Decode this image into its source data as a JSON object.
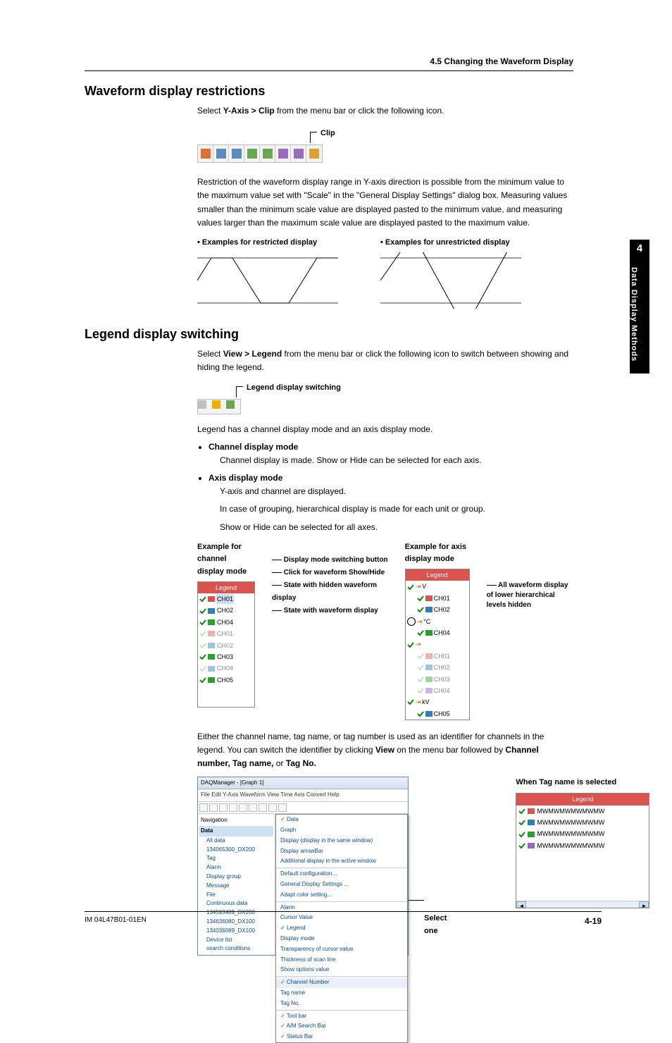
{
  "breadcrumb": "4.5  Changing the Waveform Display",
  "side_tab": {
    "num": "4",
    "text": "Data Display Methods"
  },
  "footer": {
    "doc": "IM 04L47B01-01EN",
    "page": "4-19"
  },
  "sec1": {
    "title": "Waveform display restrictions",
    "intro_a": "Select ",
    "intro_b": "Y-Axis > Clip",
    "intro_c": " from the menu bar or click the following icon.",
    "clip_label": "Clip",
    "para": "Restriction of the waveform display range in Y-axis direction is possible from the minimum value to the maximum value set with \"Scale\" in the \"General Display Settings\" dialog box. Measuring values smaller than the minimum scale value are displayed pasted to the minimum value, and measuring values larger than the maximum scale value are displayed pasted to the maximum value.",
    "ex_restricted": "•   Examples for restricted display",
    "ex_unrestricted": "•   Examples for unrestricted display",
    "toolbar_icons": [
      "#e07030",
      "#5a8cc0",
      "#5a8cc0",
      "#6aa84f",
      "#6aa84f",
      "#9a6bbf",
      "#9a6bbf",
      "#e0a030"
    ]
  },
  "sec2": {
    "title": "Legend display switching",
    "intro_a": "Select ",
    "intro_b": "View > Legend",
    "intro_c": " from the menu bar or click the following icon to switch between showing and hiding the legend.",
    "switch_label": "Legend display switching",
    "toolbar_icons": [
      "#c0c0c0",
      "#f0b000",
      "#6aa84f"
    ],
    "modes_line": "Legend has a channel display mode and an axis display mode.",
    "ch_mode_h": "Channel display mode",
    "ch_mode_t": "Channel display is made. Show or Hide can be selected for each axis.",
    "ax_mode_h": "Axis display mode",
    "ax_mode_t1": "Y-axis and channel are displayed.",
    "ax_mode_t2": "In case of grouping, hierarchical display is made for each unit or group.",
    "ax_mode_t3": "Show or Hide can be selected for all axes.",
    "ch_example_h": "Example for channel display mode",
    "ax_example_h": "Example for axis display mode",
    "callouts_ch": [
      "Display mode switching button",
      "Click for waveform Show/Hide",
      "State with hidden waveform display",
      "State with waveform display"
    ],
    "callout_ax": "All waveform display of lower hierarchical levels hidden",
    "ch_legend": {
      "header": "Legend",
      "rows": [
        {
          "label": "CH01",
          "color": "#d9534f",
          "gray": false,
          "hl": true
        },
        {
          "label": "CH02",
          "color": "#2c7fb8",
          "gray": false
        },
        {
          "label": "CH04",
          "color": "#2ca02c",
          "gray": false
        },
        {
          "label": "CH01",
          "color": "#d9534f",
          "gray": true
        },
        {
          "label": "CH02",
          "color": "#2c7fb8",
          "gray": true
        },
        {
          "label": "CH03",
          "color": "#2ca02c",
          "gray": false
        },
        {
          "label": "CH04",
          "color": "#2c7fb8",
          "gray": true
        },
        {
          "label": "CH05",
          "color": "#2ca02c",
          "gray": false
        }
      ]
    },
    "ax_legend": {
      "header": "Legend",
      "groups": [
        {
          "unit": "V",
          "items": [
            {
              "label": "CH01",
              "color": "#d9534f"
            },
            {
              "label": "CH02",
              "color": "#2c7fb8"
            }
          ]
        },
        {
          "unit": "°C",
          "items": [
            {
              "label": "CH04",
              "color": "#2ca02c"
            }
          ],
          "circle": true
        },
        {
          "unit": "",
          "items": [
            {
              "label": "CH01",
              "color": "#d9534f",
              "gray": true
            },
            {
              "label": "CH02",
              "color": "#2c7fb8",
              "gray": true
            },
            {
              "label": "CH03",
              "color": "#2ca02c",
              "gray": true
            },
            {
              "label": "CH04",
              "color": "#9467bd",
              "gray": true
            }
          ]
        },
        {
          "unit": "kV",
          "items": [
            {
              "label": "CH05",
              "color": "#2c7fb8"
            }
          ]
        }
      ]
    },
    "para2_a": "Either the channel name, tag name, or tag number is used as an identifier for channels in the legend. You can switch the identifier by clicking ",
    "para2_b": "View",
    "para2_c": " on the menu bar followed by ",
    "para2_d": "Channel number, Tag name,",
    "para2_e": " or ",
    "para2_f": "Tag No.",
    "daq": {
      "title": "DAQManager - [Graph 1]",
      "menu": "File   Edit   Y-Axis   Waveform   View   Time Axis   Convert   Help",
      "nav_h_data": "Data",
      "nav_items": [
        "All data",
        "  134065300_DX200",
        "    Tag",
        "    Alarm",
        "    Display group",
        "    Message",
        "    File",
        "    Continuous data",
        "  134593489_DX200",
        "  134636080_DX100",
        "  134036089_DX100",
        "Device list",
        "search conditions"
      ],
      "view_menu": [
        {
          "t": "Data",
          "chk": true
        },
        {
          "t": "Graph"
        },
        {
          "t": "Display (display in the same window)"
        },
        {
          "t": "Display arrowBar"
        },
        {
          "t": "Additional display in the active window"
        },
        {
          "t": "Default configuration..."
        },
        {
          "t": "General Display Settings ..."
        },
        {
          "t": "Adapt color setting..."
        },
        {
          "t": "Alarm"
        },
        {
          "t": "Cursor Value"
        },
        {
          "t": "Legend",
          "chk": true
        },
        {
          "t": "Display mode"
        },
        {
          "t": "Transparency of cursor value"
        },
        {
          "t": "Thickness of scan line"
        },
        {
          "t": "Show options value"
        },
        {
          "t": "Channel Number",
          "chk": true
        },
        {
          "t": "Tag name"
        },
        {
          "t": "Tag No."
        },
        {
          "t": "Tool bar",
          "chk": true
        },
        {
          "t": "A/M Search Bar",
          "chk": true
        },
        {
          "t": "Status Bar",
          "chk": true
        }
      ]
    },
    "select_one": "Select one",
    "tag_caption": "When Tag name is selected",
    "tag_legend": {
      "header": "Legend",
      "rows": [
        {
          "label": "MWMWMWMWMWMW",
          "color": "#d9534f"
        },
        {
          "label": "MWMWMWMWMWMW",
          "color": "#2c7fb8"
        },
        {
          "label": "MWMWMWMWMWMW",
          "color": "#2ca02c"
        },
        {
          "label": "MWMWMWMWMWMW",
          "color": "#9467bd"
        }
      ]
    }
  }
}
